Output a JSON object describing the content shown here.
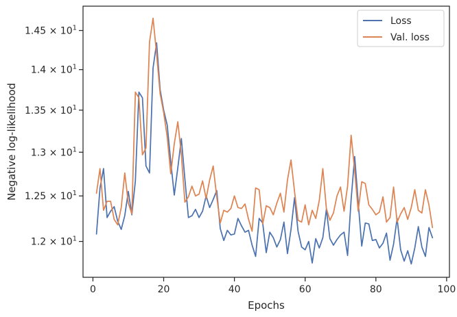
{
  "chart_data": {
    "type": "line",
    "title": "",
    "xlabel": "Epochs",
    "ylabel": "Negative log-likelihood",
    "xlim": [
      -2.8,
      100.8
    ],
    "ylim": [
      11.62,
      14.82
    ],
    "yscale": "log",
    "x_ticks": [
      0,
      20,
      40,
      60,
      80,
      100
    ],
    "y_ticks": [
      {
        "value": 12.0,
        "mantissa": "1.2",
        "base": "10",
        "exp": "1"
      },
      {
        "value": 12.5,
        "mantissa": "1.25",
        "base": "10",
        "exp": "1"
      },
      {
        "value": 13.0,
        "mantissa": "1.3",
        "base": "10",
        "exp": "1"
      },
      {
        "value": 13.5,
        "mantissa": "1.35",
        "base": "10",
        "exp": "1"
      },
      {
        "value": 14.0,
        "mantissa": "1.4",
        "base": "10",
        "exp": "1"
      },
      {
        "value": 14.5,
        "mantissa": "1.45",
        "base": "10",
        "exp": "1"
      }
    ],
    "grid": false,
    "legend_position": "top-right",
    "x": [
      1,
      2,
      3,
      4,
      5,
      6,
      7,
      8,
      9,
      10,
      11,
      12,
      13,
      14,
      15,
      16,
      17,
      18,
      19,
      20,
      21,
      22,
      23,
      24,
      25,
      26,
      27,
      28,
      29,
      30,
      31,
      32,
      33,
      34,
      35,
      36,
      37,
      38,
      39,
      40,
      41,
      42,
      43,
      44,
      45,
      46,
      47,
      48,
      49,
      50,
      51,
      52,
      53,
      54,
      55,
      56,
      57,
      58,
      59,
      60,
      61,
      62,
      63,
      64,
      65,
      66,
      67,
      68,
      69,
      70,
      71,
      72,
      73,
      74,
      75,
      76,
      77,
      78,
      79,
      80,
      81,
      82,
      83,
      84,
      85,
      86,
      87,
      88,
      89,
      90,
      91,
      92,
      93,
      94,
      95,
      96
    ],
    "series": [
      {
        "name": "Loss",
        "color": "#4c72b0",
        "values": [
          12.08,
          12.59,
          12.81,
          12.26,
          12.33,
          12.38,
          12.22,
          12.13,
          12.28,
          12.55,
          12.29,
          12.67,
          13.72,
          13.65,
          12.84,
          12.76,
          14.02,
          14.34,
          13.75,
          13.5,
          13.32,
          12.89,
          12.51,
          12.82,
          13.16,
          12.69,
          12.26,
          12.28,
          12.35,
          12.26,
          12.33,
          12.5,
          12.37,
          12.46,
          12.56,
          12.14,
          12.01,
          12.12,
          12.07,
          12.08,
          12.25,
          12.17,
          12.1,
          12.12,
          11.96,
          11.84,
          12.25,
          12.2,
          11.88,
          12.1,
          12.04,
          11.94,
          12.02,
          12.21,
          11.87,
          12.13,
          12.48,
          12.11,
          11.94,
          11.91,
          12.0,
          11.77,
          12.03,
          11.93,
          12.04,
          12.35,
          12.03,
          11.96,
          12.02,
          12.07,
          12.1,
          11.85,
          12.46,
          12.95,
          12.43,
          11.95,
          12.2,
          12.19,
          12.01,
          12.02,
          11.93,
          11.98,
          12.09,
          11.8,
          11.97,
          12.25,
          11.91,
          11.79,
          11.9,
          11.76,
          11.93,
          12.16,
          11.94,
          11.84,
          12.15,
          12.04
        ]
      },
      {
        "name": "Val. loss",
        "color": "#dd8452",
        "values": [
          12.53,
          12.81,
          12.34,
          12.44,
          12.44,
          12.24,
          12.18,
          12.37,
          12.76,
          12.42,
          12.3,
          13.72,
          13.65,
          12.97,
          13.05,
          14.35,
          14.66,
          14.2,
          13.7,
          13.47,
          13.18,
          12.75,
          13.1,
          13.36,
          12.97,
          12.43,
          12.49,
          12.61,
          12.5,
          12.52,
          12.67,
          12.47,
          12.68,
          12.84,
          12.49,
          12.2,
          12.34,
          12.32,
          12.36,
          12.5,
          12.37,
          12.36,
          12.41,
          12.24,
          12.11,
          12.59,
          12.57,
          12.19,
          12.39,
          12.37,
          12.29,
          12.42,
          12.53,
          12.32,
          12.68,
          12.91,
          12.55,
          12.23,
          12.21,
          12.4,
          12.18,
          12.34,
          12.25,
          12.45,
          12.81,
          12.36,
          12.23,
          12.31,
          12.5,
          12.6,
          12.33,
          12.61,
          13.2,
          12.79,
          12.33,
          12.66,
          12.64,
          12.4,
          12.35,
          12.29,
          12.32,
          12.49,
          12.21,
          12.26,
          12.6,
          12.21,
          12.3,
          12.37,
          12.24,
          12.37,
          12.57,
          12.34,
          12.31,
          12.57,
          12.4,
          12.15
        ]
      }
    ]
  }
}
